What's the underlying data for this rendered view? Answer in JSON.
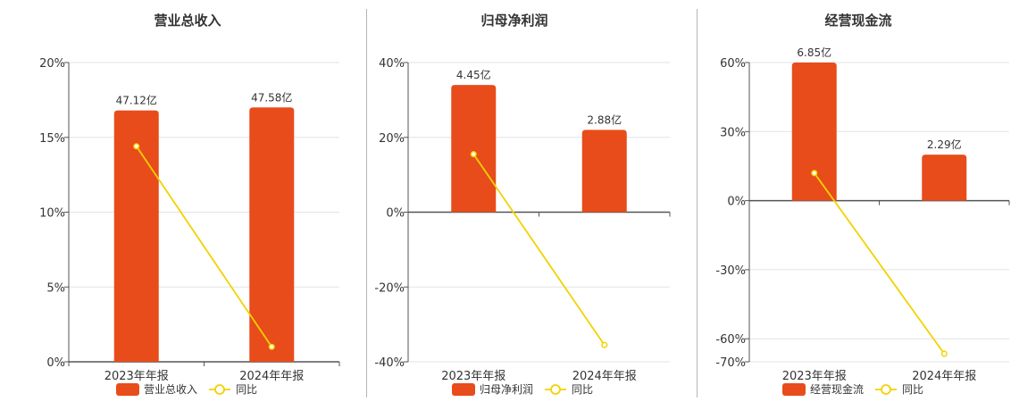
{
  "colors": {
    "bar": "#e84c1b",
    "line": "#f2d200",
    "grid": "#e3e3e3",
    "axis": "#555555",
    "text": "#333333"
  },
  "chart_data": [
    {
      "type": "bar",
      "title": "营业总收入",
      "categories": [
        "2023年年报",
        "2024年年报"
      ],
      "bar_series": {
        "name": "营业总收入",
        "values_pct": [
          16.8,
          17.0
        ],
        "labels": [
          "47.12亿",
          "47.58亿"
        ]
      },
      "line_series": {
        "name": "同比",
        "values": [
          14.4,
          1.0
        ]
      },
      "y_ticks": [
        "20%",
        "15%",
        "10%",
        "5%",
        "0%"
      ],
      "ylim": [
        0,
        20
      ],
      "legend": "bottom-center",
      "grid": true
    },
    {
      "type": "bar",
      "title": "归母净利润",
      "categories": [
        "2023年年报",
        "2024年年报"
      ],
      "bar_series": {
        "name": "归母净利润",
        "values_pct": [
          34,
          22
        ],
        "labels": [
          "4.45亿",
          "2.88亿"
        ]
      },
      "line_series": {
        "name": "同比",
        "values": [
          15.5,
          -35.5
        ]
      },
      "y_ticks": [
        "40%",
        "20%",
        "0%",
        "-20%",
        "-40%"
      ],
      "ylim": [
        -40,
        40
      ],
      "legend": "bottom-center",
      "grid": true
    },
    {
      "type": "bar",
      "title": "经营现金流",
      "categories": [
        "2023年年报",
        "2024年年报"
      ],
      "bar_series": {
        "name": "经营现金流",
        "values_pct": [
          60,
          20
        ],
        "labels": [
          "6.85亿",
          "2.29亿"
        ]
      },
      "line_series": {
        "name": "同比",
        "values": [
          12,
          -66.5
        ]
      },
      "y_ticks": [
        "60%",
        "30%",
        "0%",
        "-30%",
        "-60%",
        "-70%"
      ],
      "ylim": [
        -70,
        60
      ],
      "legend": "bottom-center",
      "grid": true
    }
  ]
}
